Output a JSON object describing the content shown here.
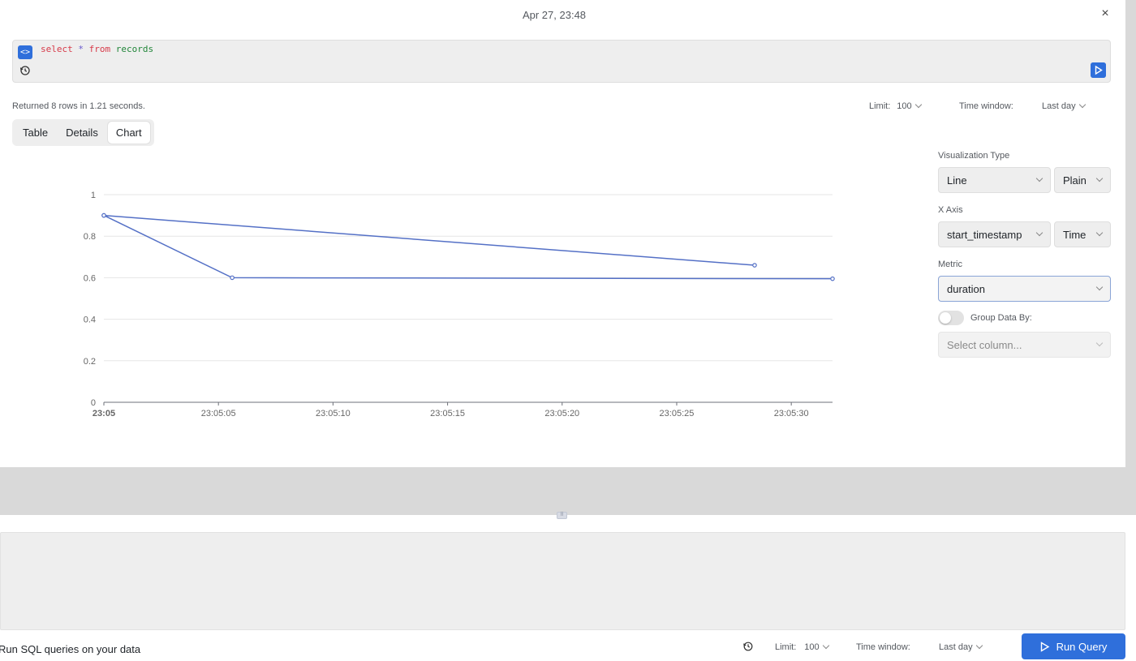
{
  "panel": {
    "title": "Apr 27, 23:48",
    "close_glyph": "×"
  },
  "editor": {
    "code": {
      "kw1": "select",
      "op": "*",
      "kw2": "from",
      "table": "records"
    },
    "code_toggle_glyph": "<>"
  },
  "status": "Returned 8 rows in 1.21 seconds.",
  "options": {
    "limit_label": "Limit:",
    "limit_value": "100",
    "time_window_label": "Time window:",
    "time_window_value": "Last day"
  },
  "tabs": [
    {
      "label": "Table",
      "active": false
    },
    {
      "label": "Details",
      "active": false
    },
    {
      "label": "Chart",
      "active": true
    }
  ],
  "config": {
    "viz_type_label": "Visualization Type",
    "viz_type_value": "Line",
    "viz_style_value": "Plain",
    "x_axis_label": "X Axis",
    "x_axis_value": "start_timestamp",
    "x_axis_type_value": "Time",
    "metric_label": "Metric",
    "metric_value": "duration",
    "group_label": "Group Data By:",
    "group_placeholder": "Select column..."
  },
  "footer": {
    "text": "Run SQL queries on your data",
    "limit_label": "Limit:",
    "limit_value": "100",
    "time_window_label": "Time window:",
    "time_window_value": "Last day",
    "run_label": "Run Query"
  },
  "colors": {
    "accent": "#2f6fdb",
    "series": "#5470c6"
  },
  "chart_data": {
    "type": "line",
    "xlabel": "",
    "ylabel": "",
    "ylim": [
      0,
      1
    ],
    "yticks": [
      "0",
      "0.2",
      "0.4",
      "0.6",
      "0.8",
      "1"
    ],
    "xticks": [
      "23:05",
      "23:05:05",
      "23:05:10",
      "23:05:15",
      "23:05:20",
      "23:05:25",
      "23:05:30"
    ],
    "xlim_seconds": [
      0,
      31.8
    ],
    "series": [
      {
        "points": [
          {
            "x": "23:05:00",
            "y": 0.9
          },
          {
            "x": "23:05:28.4",
            "y": 0.66
          },
          {
            "x": "23:05:00",
            "y": 0.9
          },
          {
            "x": "23:05:05.6",
            "y": 0.6
          },
          {
            "x": "23:05:31.8",
            "y": 0.595
          }
        ]
      }
    ],
    "grid": true
  }
}
